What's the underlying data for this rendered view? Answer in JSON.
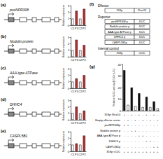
{
  "chart_data": [
    {
      "type": "bar",
      "title": "(a)",
      "subtitle": "posNPR308",
      "ylabel": "Relative expression",
      "categories": [
        "C1",
        "P1",
        "C2",
        "P2"
      ],
      "values": [
        1,
        2.2,
        1,
        2.5
      ],
      "colors": [
        "#ffffff",
        "#c62828",
        "#ffffff",
        "#c62828"
      ],
      "ylim": [
        0,
        3
      ],
      "yticks": [
        0,
        1,
        2,
        3
      ]
    },
    {
      "type": "bar",
      "title": "(b)",
      "subtitle": "Nodulin protein",
      "ylabel": "Relative expression",
      "categories": [
        "C1",
        "P1",
        "C2",
        "P2"
      ],
      "values": [
        1,
        2.6,
        1,
        1.8
      ],
      "colors": [
        "#ffffff",
        "#c62828",
        "#ffffff",
        "#c62828"
      ],
      "ylim": [
        0,
        3
      ],
      "yticks": [
        0,
        1,
        2,
        3
      ]
    },
    {
      "type": "bar",
      "title": "(c)",
      "subtitle": "AAA-type ATPase",
      "ylabel": "Relative expression",
      "categories": [
        "C1",
        "P1",
        "C2",
        "P2"
      ],
      "values": [
        1,
        1.5,
        1,
        2.0
      ],
      "colors": [
        "#ffffff",
        "#c62828",
        "#ffffff",
        "#c62828"
      ],
      "ylim": [
        0,
        3
      ],
      "yticks": [
        0,
        1,
        2,
        3
      ]
    },
    {
      "type": "bar",
      "title": "(d)",
      "subtitle": "DHHC4",
      "ylabel": "Relative expression",
      "categories": [
        "C1",
        "P1",
        "C2",
        "P2"
      ],
      "values": [
        1,
        2.0,
        1,
        1.4
      ],
      "colors": [
        "#ffffff",
        "#c62828",
        "#ffffff",
        "#c62828"
      ],
      "ylim": [
        0,
        3
      ],
      "yticks": [
        0,
        1,
        2,
        3
      ]
    },
    {
      "type": "bar",
      "title": "(e)",
      "subtitle": "CASPL5B1",
      "ylabel": "Relative expression",
      "categories": [
        "C1",
        "P1",
        "C2",
        "P2"
      ],
      "values": [
        1,
        1.2,
        1,
        2.4
      ],
      "colors": [
        "#ffffff",
        "#c62828",
        "#ffffff",
        "#c62828"
      ],
      "ylim": [
        0,
        3
      ],
      "yticks": [
        0,
        1,
        2,
        3
      ]
    },
    {
      "type": "bar",
      "title": "(g)",
      "ylabel": "Relative fLUC activity (fLUC/rLUC)",
      "categories": [
        null,
        null,
        null,
        null,
        null,
        null,
        null,
        null,
        null,
        null
      ],
      "values": [
        35,
        5,
        20,
        4,
        15,
        3,
        12,
        3,
        8,
        2
      ],
      "colors": [
        "#111111",
        "#ffffff",
        "#111111",
        "#ffffff",
        "#111111",
        "#ffffff",
        "#111111",
        "#ffffff",
        "#111111",
        "#ffffff"
      ],
      "ylim": [
        0,
        40
      ],
      "yticks": [
        0,
        10,
        20,
        30,
        40
      ],
      "tick_labels": "y"
    }
  ],
  "diagram": {
    "f": {
      "title": "(f)",
      "sections": [
        {
          "heading": "Effector",
          "constructs": [
            [
              "35Sp",
              "Rice10"
            ]
          ]
        },
        {
          "heading": "Reporter",
          "constructs": [
            [
              "posNPR308 p",
              "fLUC"
            ],
            [
              "Nodulin protein p",
              "fLUC"
            ],
            [
              "AAA-type ATPase p",
              "fLUC"
            ],
            [
              "DHHC4 p",
              "fLUC"
            ],
            [
              "CASPL5B1p",
              "fLUC"
            ]
          ]
        },
        {
          "heading": "Internal control",
          "constructs": [
            [
              "35Sp",
              "rLUC"
            ]
          ]
        }
      ]
    },
    "g_table": {
      "rows": [
        {
          "label": "35Sp::Rice10",
          "marks": [
            "+",
            "-",
            "+",
            "-",
            "+",
            "-",
            "+",
            "-",
            "+",
            "-"
          ]
        },
        {
          "label": "Empty effector vector",
          "marks": [
            "-",
            "+",
            "-",
            "+",
            "-",
            "+",
            "-",
            "+",
            "-",
            "+"
          ]
        },
        {
          "label": "posNPR308p",
          "marks": [
            "+",
            "+",
            "-",
            "-",
            "-",
            "-",
            "-",
            "-",
            "-",
            "-"
          ]
        },
        {
          "label": "Nodulin protein p",
          "marks": [
            "-",
            "-",
            "+",
            "+",
            "-",
            "-",
            "-",
            "-",
            "-",
            "-"
          ]
        },
        {
          "label": "AAA-type ATPase p",
          "marks": [
            "-",
            "-",
            "-",
            "-",
            "+",
            "+",
            "-",
            "-",
            "-",
            "-"
          ]
        },
        {
          "label": "DHHC4 p",
          "marks": [
            "-",
            "-",
            "-",
            "-",
            "-",
            "-",
            "+",
            "+",
            "-",
            "-"
          ]
        },
        {
          "label": "CASPL5B1p",
          "marks": [
            "-",
            "-",
            "-",
            "-",
            "-",
            "-",
            "-",
            "-",
            "+",
            "+"
          ]
        },
        {
          "label": "35Sp::rLUC",
          "marks": [
            "+",
            "+",
            "+",
            "+",
            "+",
            "+",
            "+",
            "+",
            "+",
            "+"
          ]
        }
      ]
    }
  }
}
